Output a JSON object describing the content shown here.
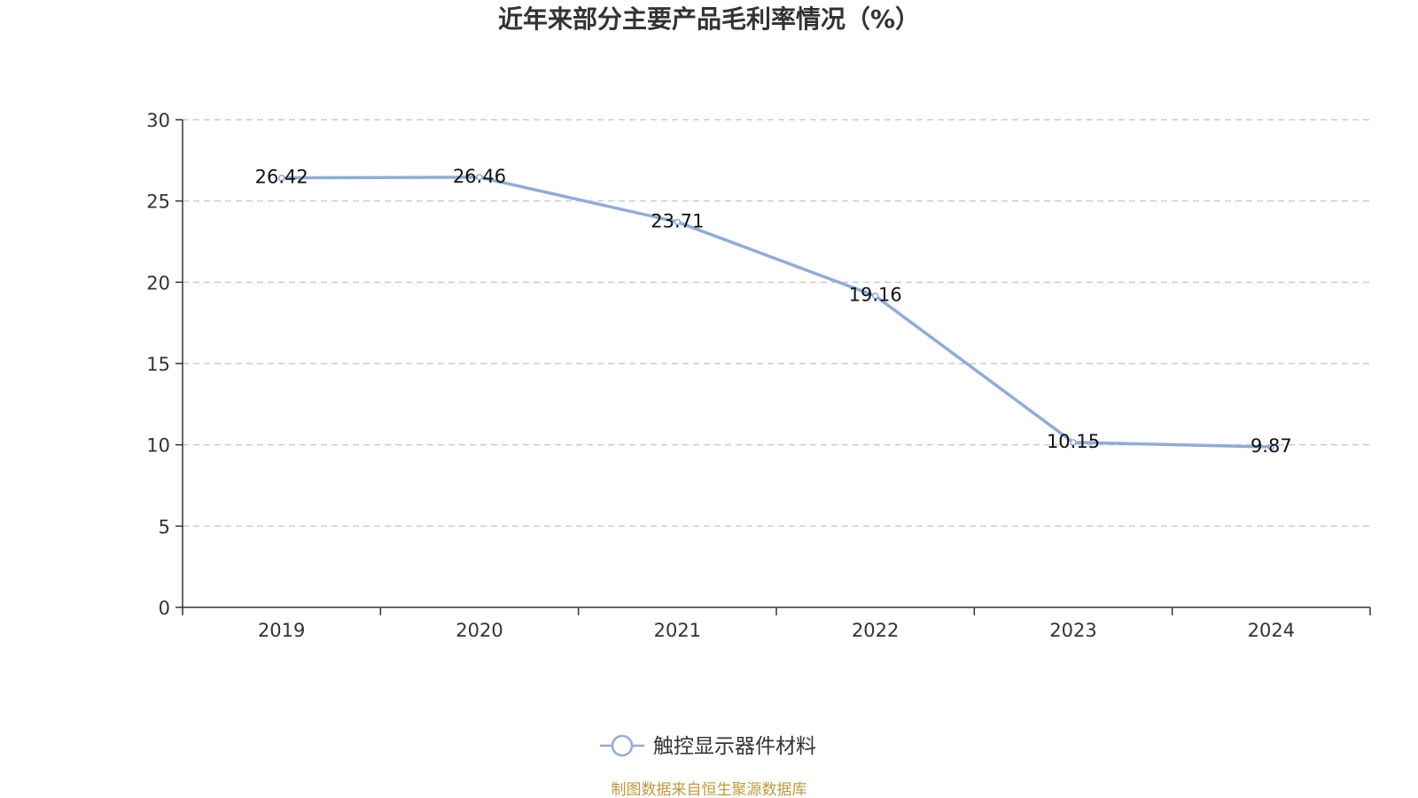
{
  "chart_data": {
    "type": "line",
    "title": "近年来部分主要产品毛利率情况（%）",
    "categories": [
      "2019",
      "2020",
      "2021",
      "2022",
      "2023",
      "2024"
    ],
    "series": [
      {
        "name": "触控显示器件材料",
        "values": [
          26.42,
          26.46,
          23.71,
          19.16,
          10.15,
          9.87
        ],
        "color": "#8eadd8"
      }
    ],
    "ylim": [
      0,
      30
    ],
    "yticks": [
      0,
      5,
      10,
      15,
      20,
      25,
      30
    ],
    "grid": true,
    "legend": "bottom-center"
  },
  "source_note": "制图数据来自恒生聚源数据库"
}
